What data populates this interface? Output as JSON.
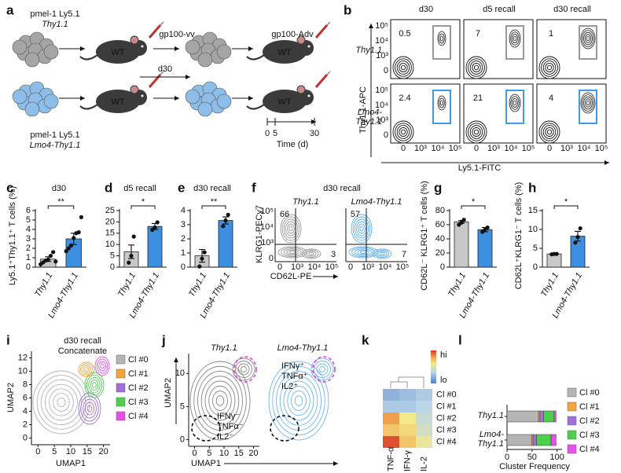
{
  "panel_labels": [
    "a",
    "b",
    "c",
    "d",
    "e",
    "f",
    "g",
    "h",
    "i",
    "j",
    "k",
    "l"
  ],
  "schematic": {
    "top_label": [
      "pmel-1 Ly5.1",
      "Thy1.1"
    ],
    "bottom_label": [
      "pmel-1 Ly5.1",
      "Lmo4-Thy1.1"
    ],
    "host": "WT",
    "prime": "gp100-vv",
    "interval": "d30",
    "boost": "gp100-Adv",
    "timeline": {
      "xlim": [
        0,
        30
      ],
      "ticks": [
        0,
        5,
        30
      ],
      "label": "Time (d)"
    }
  },
  "flow_b": {
    "columns": [
      "d30",
      "d5 recall",
      "d30 recall"
    ],
    "rows": [
      "Thy1.1",
      "Lmo4-Thy1.1"
    ],
    "gate_percent": [
      [
        0.5,
        7,
        1
      ],
      [
        2.4,
        21,
        4
      ]
    ],
    "y_label": "Thy1.1-APC",
    "x_label": "Ly5.1-FITC",
    "axis_ticks": [
      "0",
      "10³",
      "10⁴",
      "10⁵"
    ]
  },
  "flow_f": {
    "title": "d30 recall",
    "plots": [
      "Thy1.1",
      "Lmo4-Thy1.1"
    ],
    "quadrant_percent": [
      [
        66,
        3
      ],
      [
        57,
        7
      ]
    ],
    "y_label": "KLRG1-PECy7",
    "x_label": "CD62L-PE",
    "axis_ticks": [
      "0",
      "10³",
      "10⁴",
      "10⁵"
    ]
  },
  "umap_i": {
    "title": [
      "d30 recall",
      "Concatenate"
    ],
    "x_label": "UMAP1",
    "y_label": "UMAP2",
    "xlim": [
      -2,
      22
    ],
    "ylim": [
      -1,
      13
    ],
    "xticks": [
      0,
      5,
      10,
      15,
      20
    ],
    "yticks": [
      0,
      2,
      4,
      6,
      8,
      10,
      12
    ],
    "clusters": [
      {
        "name": "Cl #0",
        "color": "#b5b5b5"
      },
      {
        "name": "Cl #1",
        "color": "#f4a340"
      },
      {
        "name": "Cl #2",
        "color": "#a070d8"
      },
      {
        "name": "Cl #3",
        "color": "#4fcf4f"
      },
      {
        "name": "Cl #4",
        "color": "#e650e6"
      }
    ]
  },
  "umap_j": {
    "plots": [
      "Thy1.1",
      "Lmo4-Thy1.1"
    ],
    "x_label": "UMAP1",
    "y_label": "UMAP2",
    "xlim": [
      -2,
      22
    ],
    "ylim": [
      -1,
      13
    ],
    "xticks": [
      0,
      5,
      10,
      15,
      20
    ],
    "yticks": [
      0,
      5,
      10
    ],
    "negative_label": [
      "IFNγ⁻",
      "TNFα⁻",
      "IL2⁻"
    ],
    "positive_label": [
      "IFNγ⁺",
      "TNFα⁺",
      "IL2⁺"
    ]
  },
  "heatmap_k": {
    "rows": [
      "Cl #0",
      "Cl #1",
      "Cl #2",
      "Cl #3",
      "Cl #4"
    ],
    "columns": [
      "TNF-α",
      "IFN-γ",
      "IL-2"
    ],
    "values": [
      [
        0.2,
        0.25,
        0.3
      ],
      [
        0.3,
        0.3,
        0.35
      ],
      [
        0.8,
        0.6,
        0.4
      ],
      [
        0.7,
        0.65,
        0.45
      ],
      [
        0.95,
        0.7,
        0.55
      ]
    ],
    "scale_labels": [
      "hi",
      "lo"
    ]
  },
  "chart_data": [
    {
      "type": "bar",
      "title": "d30",
      "y_label": "Ly5.1⁺Thy1.1⁺ T cells (%)",
      "categories": [
        "Thy1.1",
        "Lmo4-Thy1.1"
      ],
      "values": [
        0.85,
        3.0
      ],
      "errors": [
        0.25,
        0.6
      ],
      "colors": [
        "#c8c8c8",
        "#3d8fe0"
      ],
      "points": [
        [
          0.3,
          0.5,
          0.7,
          0.8,
          1.2,
          1.6,
          0.6
        ],
        [
          1.7,
          2.0,
          2.3,
          3.1,
          3.6,
          3.7,
          5.3
        ]
      ],
      "ylim": [
        0,
        6
      ],
      "yticks": [
        0,
        1,
        2,
        3,
        4,
        5,
        6
      ],
      "significance": "**"
    },
    {
      "type": "bar",
      "title": "d5 recall",
      "categories": [
        "Thy1.1",
        "Lmo4-Thy1.1"
      ],
      "values": [
        6.8,
        18
      ],
      "errors": [
        3,
        1.3
      ],
      "colors": [
        "#c8c8c8",
        "#3d8fe0"
      ],
      "points": [
        [
          2,
          5,
          13.5
        ],
        [
          16.5,
          17.5,
          19.8
        ]
      ],
      "ylim": [
        0,
        25
      ],
      "yticks": [
        0,
        5,
        10,
        15,
        20,
        25
      ],
      "significance": "*"
    },
    {
      "type": "bar",
      "title": "d30 recall",
      "categories": [
        "Thy1.1",
        "Lmo4-Thy1.1"
      ],
      "values": [
        0.8,
        3.3
      ],
      "errors": [
        0.45,
        0.25
      ],
      "colors": [
        "#c8c8c8",
        "#3d8fe0"
      ],
      "points": [
        [
          0.05,
          0.6,
          1.05
        ],
        [
          2.9,
          3.3,
          3.7
        ]
      ],
      "ylim": [
        0,
        4
      ],
      "yticks": [
        0,
        1,
        2,
        3,
        4
      ],
      "significance": "**"
    },
    {
      "type": "bar",
      "y_label": "CD62L⁻ KLRG1⁺ T cells (%)",
      "categories": [
        "Thy1.1",
        "Lmo4-Thy1.1"
      ],
      "values": [
        64,
        53
      ],
      "errors": [
        2,
        3
      ],
      "colors": [
        "#c8c8c8",
        "#3d8fe0"
      ],
      "points": [
        [
          60,
          63,
          67
        ],
        [
          50,
          53,
          56
        ]
      ],
      "ylim": [
        0,
        80
      ],
      "yticks": [
        0,
        20,
        40,
        60,
        80
      ],
      "significance": "*"
    },
    {
      "type": "bar",
      "y_label": "CD62L⁺KLRG1⁻ T cells (%)",
      "categories": [
        "Thy1.1",
        "Lmo4-Thy1.1"
      ],
      "values": [
        3.5,
        8.2
      ],
      "errors": [
        0.1,
        1.3
      ],
      "colors": [
        "#c8c8c8",
        "#3d8fe0"
      ],
      "points": [
        [
          3.4,
          3.5,
          3.5
        ],
        [
          6.5,
          8.0,
          10.3
        ]
      ],
      "ylim": [
        0,
        15
      ],
      "yticks": [
        0,
        5,
        10,
        15
      ],
      "significance": "*"
    },
    {
      "type": "stacked_bar_h",
      "x_label": "Cluster Frequency",
      "categories": [
        "Thy1.1",
        "Lmo4-Thy1.1"
      ],
      "xlim": [
        0,
        110
      ],
      "xticks": [
        0,
        50,
        100
      ],
      "series": [
        {
          "name": "Cl #0",
          "color": "#b5b5b5",
          "values": [
            63,
            49
          ]
        },
        {
          "name": "Cl #1",
          "color": "#f4a340",
          "values": [
            3,
            3
          ]
        },
        {
          "name": "Cl #2",
          "color": "#a070d8",
          "values": [
            7,
            7
          ]
        },
        {
          "name": "Cl #3",
          "color": "#4fcf4f",
          "values": [
            21,
            29
          ]
        },
        {
          "name": "Cl #4",
          "color": "#e650e6",
          "values": [
            4,
            10
          ]
        }
      ]
    }
  ]
}
